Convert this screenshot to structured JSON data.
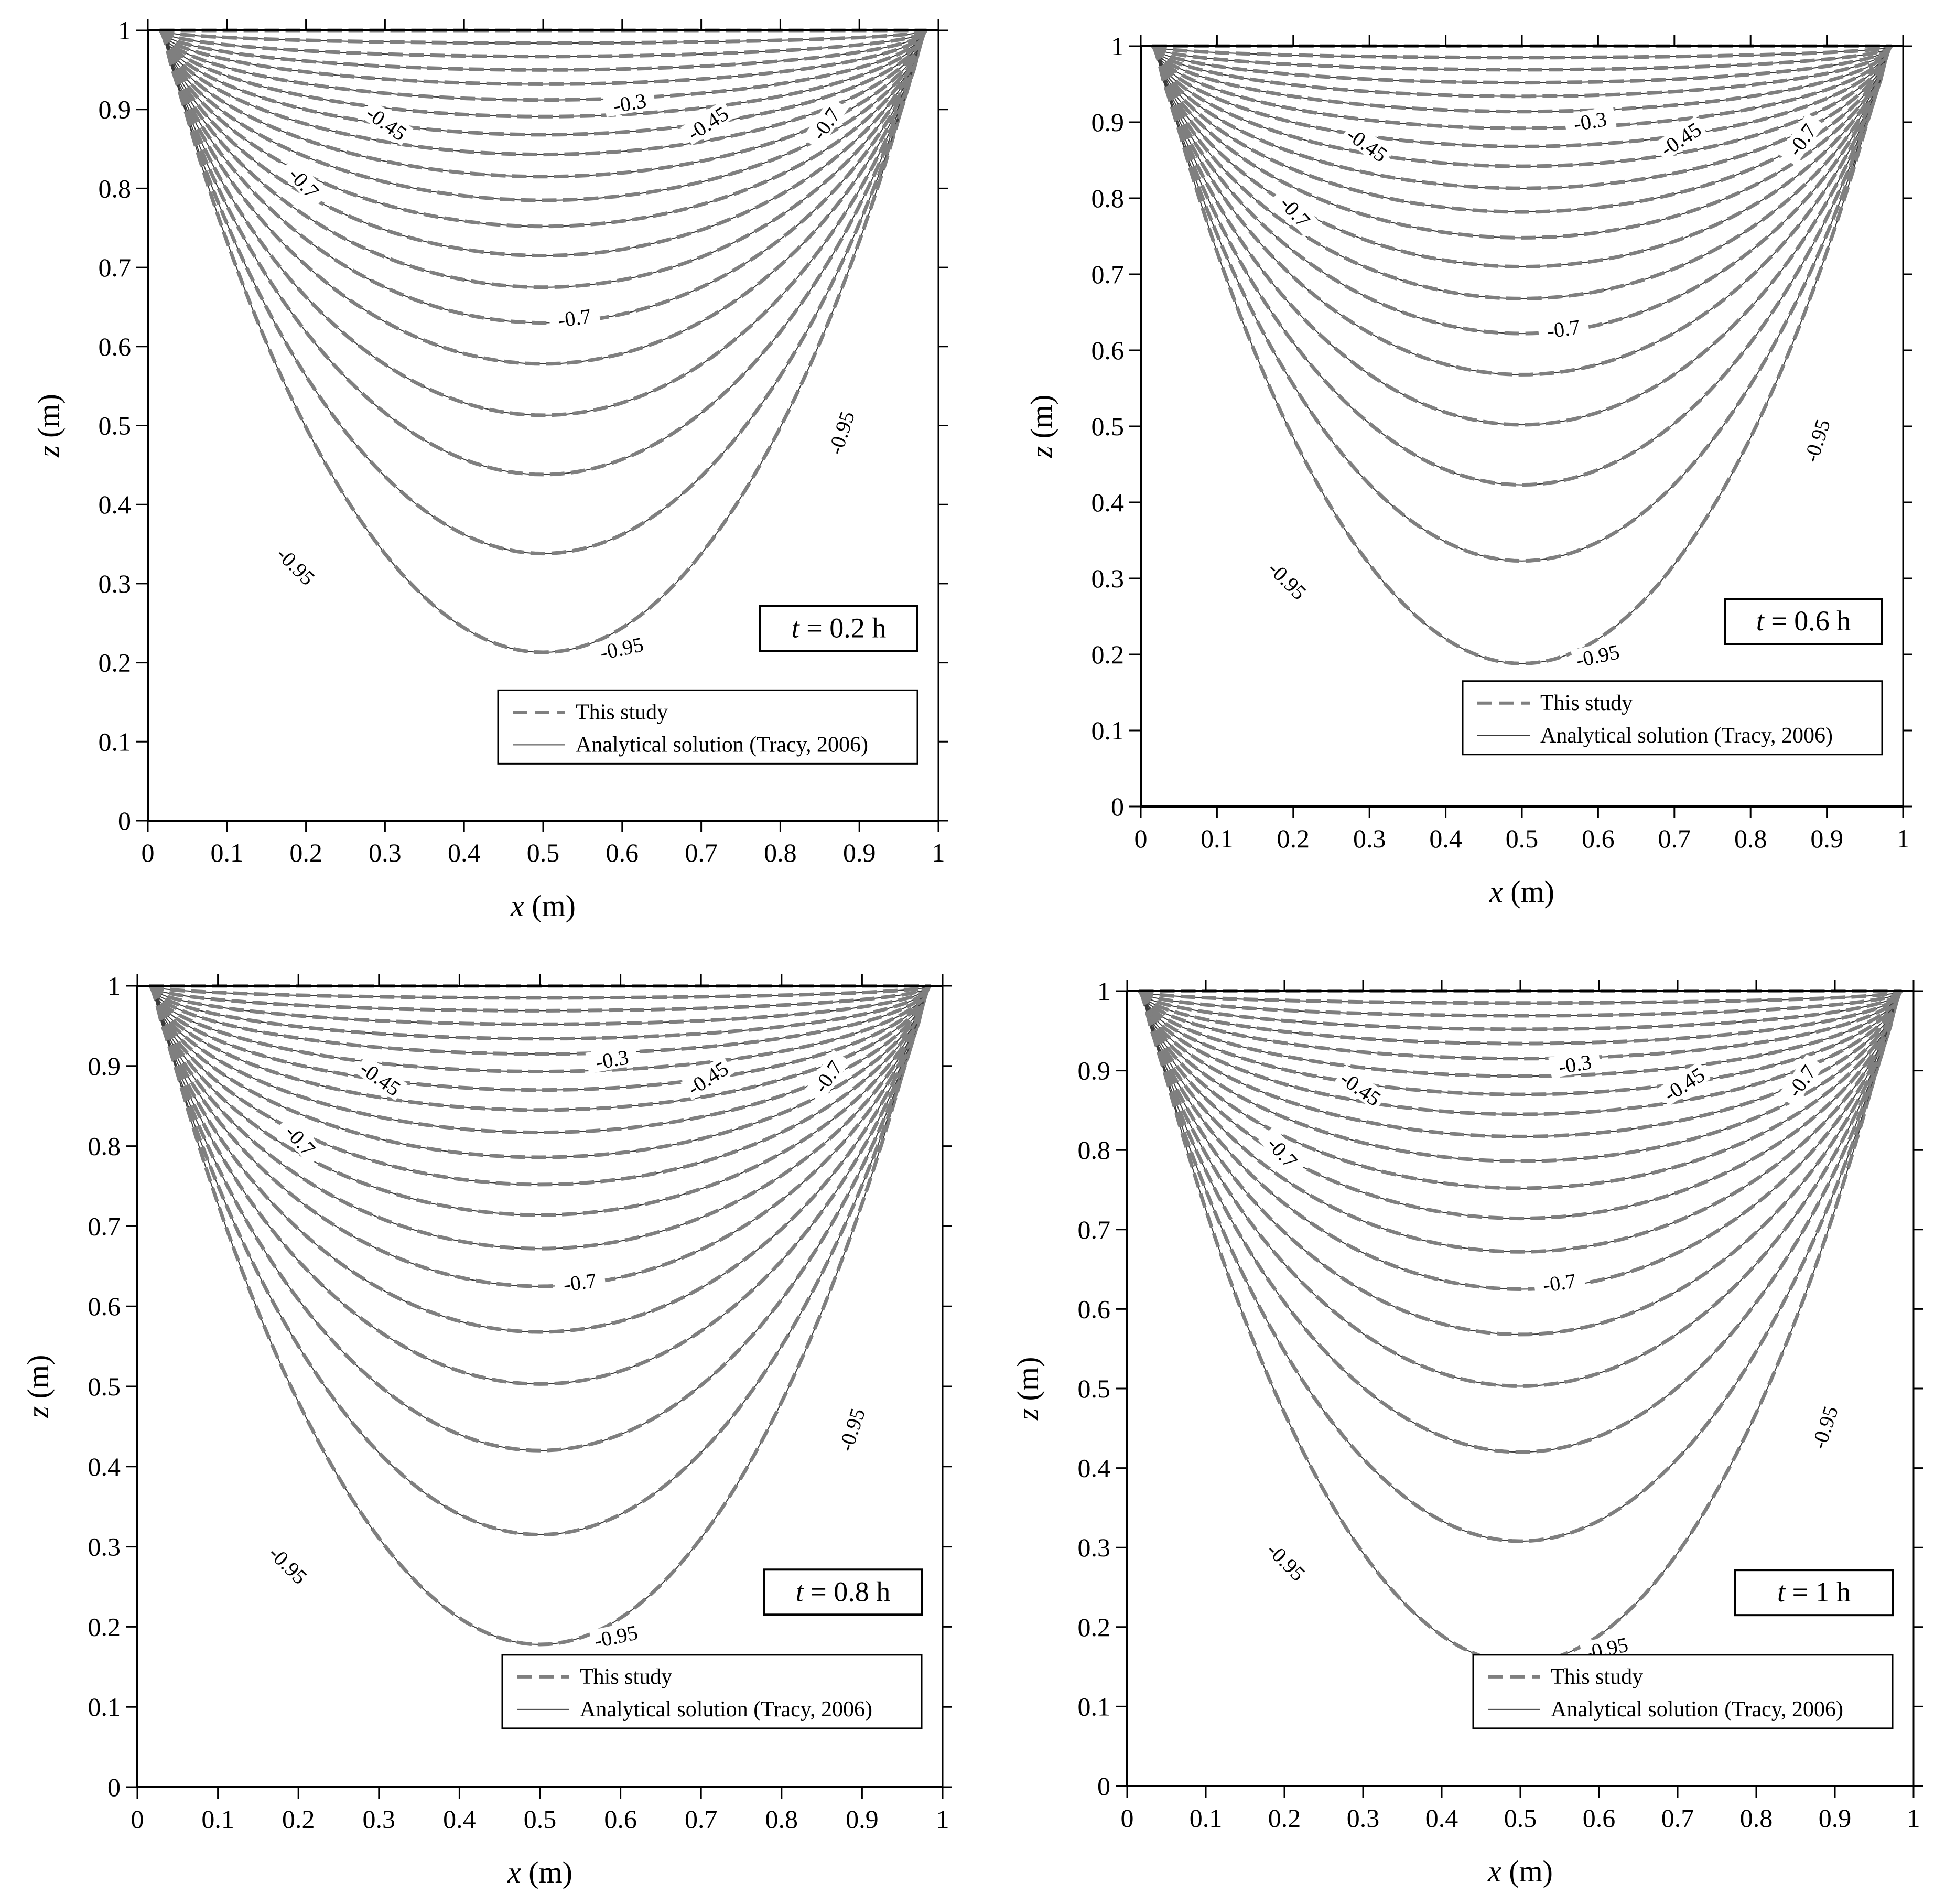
{
  "chart_data": [
    {
      "type": "contour",
      "time_label": {
        "var": "t",
        "value": "= 0.2 h"
      },
      "xlabel": {
        "var": "x",
        "unit": "(m)"
      },
      "ylabel": {
        "var": "z",
        "unit": "(m)"
      },
      "xlim": [
        0,
        1
      ],
      "ylim": [
        0,
        1
      ],
      "xticks": [
        "0",
        "0.1",
        "0.2",
        "0.3",
        "0.4",
        "0.5",
        "0.6",
        "0.7",
        "0.8",
        "0.9",
        "1"
      ],
      "yticks": [
        "0",
        "0.1",
        "0.2",
        "0.3",
        "0.4",
        "0.5",
        "0.6",
        "0.7",
        "0.8",
        "0.9",
        "1"
      ],
      "legend": [
        "This study",
        "Analytical solution (Tracy, 2006)"
      ],
      "contour_minima": [
        0.213,
        0.338,
        0.438,
        0.513,
        0.578,
        0.63,
        0.675,
        0.715,
        0.752,
        0.785,
        0.815,
        0.843,
        0.868,
        0.891,
        0.912,
        0.932,
        0.95,
        0.967,
        0.984,
        1.0
      ],
      "contour_labels": [
        {
          "text": "-0.3",
          "x": 0.61,
          "y": 0.905,
          "rot": -10
        },
        {
          "text": "-0.45",
          "x": 0.3,
          "y": 0.88,
          "rot": 35
        },
        {
          "text": "-0.45",
          "x": 0.71,
          "y": 0.88,
          "rot": -33
        },
        {
          "text": "-0.7",
          "x": 0.195,
          "y": 0.805,
          "rot": 48
        },
        {
          "text": "-0.7",
          "x": 0.86,
          "y": 0.88,
          "rot": -55
        },
        {
          "text": "-0.7",
          "x": 0.54,
          "y": 0.633,
          "rot": -8
        },
        {
          "text": "-0.95",
          "x": 0.88,
          "y": 0.49,
          "rot": -72
        },
        {
          "text": "-0.95",
          "x": 0.185,
          "y": 0.32,
          "rot": 45
        },
        {
          "text": "-0.95",
          "x": 0.6,
          "y": 0.215,
          "rot": -12
        }
      ]
    },
    {
      "type": "contour",
      "time_label": {
        "var": "t",
        "value": "= 0.6 h"
      },
      "xlabel": {
        "var": "x",
        "unit": "(m)"
      },
      "ylabel": {
        "var": "z",
        "unit": "(m)"
      },
      "xlim": [
        0,
        1
      ],
      "ylim": [
        0,
        1
      ],
      "xticks": [
        "0",
        "0.1",
        "0.2",
        "0.3",
        "0.4",
        "0.5",
        "0.6",
        "0.7",
        "0.8",
        "0.9",
        "1"
      ],
      "yticks": [
        "0",
        "0.1",
        "0.2",
        "0.3",
        "0.4",
        "0.5",
        "0.6",
        "0.7",
        "0.8",
        "0.9",
        "1"
      ],
      "legend": [
        "This study",
        "Analytical solution (Tracy, 2006)"
      ],
      "contour_minima": [
        0.188,
        0.323,
        0.423,
        0.502,
        0.568,
        0.622,
        0.668,
        0.71,
        0.748,
        0.782,
        0.813,
        0.842,
        0.868,
        0.892,
        0.914,
        0.934,
        0.952,
        0.969,
        0.985,
        1.0
      ],
      "contour_labels": [
        {
          "text": "-0.3",
          "x": 0.59,
          "y": 0.898,
          "rot": -10
        },
        {
          "text": "-0.45",
          "x": 0.295,
          "y": 0.868,
          "rot": 35
        },
        {
          "text": "-0.45",
          "x": 0.71,
          "y": 0.875,
          "rot": -33
        },
        {
          "text": "-0.7",
          "x": 0.2,
          "y": 0.78,
          "rot": 48
        },
        {
          "text": "-0.7",
          "x": 0.87,
          "y": 0.875,
          "rot": -55
        },
        {
          "text": "-0.7",
          "x": 0.555,
          "y": 0.625,
          "rot": -8
        },
        {
          "text": "-0.95",
          "x": 0.89,
          "y": 0.48,
          "rot": -72
        },
        {
          "text": "-0.95",
          "x": 0.19,
          "y": 0.295,
          "rot": 45
        },
        {
          "text": "-0.95",
          "x": 0.6,
          "y": 0.195,
          "rot": -12
        }
      ]
    },
    {
      "type": "contour",
      "time_label": {
        "var": "t",
        "value": "= 0.8 h"
      },
      "xlabel": {
        "var": "x",
        "unit": "(m)"
      },
      "ylabel": {
        "var": "z",
        "unit": "(m)"
      },
      "xlim": [
        0,
        1
      ],
      "ylim": [
        0,
        1
      ],
      "xticks": [
        "0",
        "0.1",
        "0.2",
        "0.3",
        "0.4",
        "0.5",
        "0.6",
        "0.7",
        "0.8",
        "0.9",
        "1"
      ],
      "yticks": [
        "0",
        "0.1",
        "0.2",
        "0.3",
        "0.4",
        "0.5",
        "0.6",
        "0.7",
        "0.8",
        "0.9",
        "1"
      ],
      "legend": [
        "This study",
        "Analytical solution (Tracy, 2006)"
      ],
      "contour_minima": [
        0.178,
        0.315,
        0.42,
        0.503,
        0.568,
        0.625,
        0.672,
        0.714,
        0.752,
        0.786,
        0.817,
        0.845,
        0.87,
        0.893,
        0.915,
        0.934,
        0.952,
        0.969,
        0.985,
        1.0
      ],
      "contour_labels": [
        {
          "text": "-0.3",
          "x": 0.59,
          "y": 0.905,
          "rot": -10
        },
        {
          "text": "-0.45",
          "x": 0.3,
          "y": 0.882,
          "rot": 35
        },
        {
          "text": "-0.45",
          "x": 0.71,
          "y": 0.882,
          "rot": -33
        },
        {
          "text": "-0.7",
          "x": 0.2,
          "y": 0.805,
          "rot": 48
        },
        {
          "text": "-0.7",
          "x": 0.86,
          "y": 0.885,
          "rot": -55
        },
        {
          "text": "-0.7",
          "x": 0.55,
          "y": 0.627,
          "rot": -8
        },
        {
          "text": "-0.95",
          "x": 0.89,
          "y": 0.445,
          "rot": -72
        },
        {
          "text": "-0.95",
          "x": 0.185,
          "y": 0.275,
          "rot": 45
        },
        {
          "text": "-0.95",
          "x": 0.595,
          "y": 0.185,
          "rot": -12
        }
      ]
    },
    {
      "type": "contour",
      "time_label": {
        "var": "t",
        "value": "= 1 h"
      },
      "xlabel": {
        "var": "x",
        "unit": "(m)"
      },
      "ylabel": {
        "var": "z",
        "unit": "(m)"
      },
      "xlim": [
        0,
        1
      ],
      "ylim": [
        0,
        1
      ],
      "xticks": [
        "0",
        "0.1",
        "0.2",
        "0.3",
        "0.4",
        "0.5",
        "0.6",
        "0.7",
        "0.8",
        "0.9",
        "1"
      ],
      "yticks": [
        "0",
        "0.1",
        "0.2",
        "0.3",
        "0.4",
        "0.5",
        "0.6",
        "0.7",
        "0.8",
        "0.9",
        "1"
      ],
      "legend": [
        "This study",
        "Analytical solution (Tracy, 2006)"
      ],
      "contour_minima": [
        0.155,
        0.308,
        0.42,
        0.503,
        0.568,
        0.625,
        0.672,
        0.714,
        0.752,
        0.786,
        0.817,
        0.845,
        0.87,
        0.893,
        0.915,
        0.934,
        0.952,
        0.969,
        0.985,
        1.0
      ],
      "contour_labels": [
        {
          "text": "-0.3",
          "x": 0.57,
          "y": 0.905,
          "rot": -10
        },
        {
          "text": "-0.45",
          "x": 0.295,
          "y": 0.875,
          "rot": 35
        },
        {
          "text": "-0.45",
          "x": 0.71,
          "y": 0.88,
          "rot": -33
        },
        {
          "text": "-0.7",
          "x": 0.195,
          "y": 0.795,
          "rot": 48
        },
        {
          "text": "-0.7",
          "x": 0.86,
          "y": 0.885,
          "rot": -55
        },
        {
          "text": "-0.7",
          "x": 0.55,
          "y": 0.63,
          "rot": -8
        },
        {
          "text": "-0.95",
          "x": 0.89,
          "y": 0.45,
          "rot": -72
        },
        {
          "text": "-0.95",
          "x": 0.2,
          "y": 0.28,
          "rot": 45
        },
        {
          "text": "-0.95",
          "x": 0.61,
          "y": 0.17,
          "rot": -12
        }
      ]
    }
  ],
  "colors": {
    "axis": "#000000",
    "study_line": "#7f7f7f",
    "analytical_line": "#3a3a3a",
    "label_bg": "#ffffff"
  }
}
